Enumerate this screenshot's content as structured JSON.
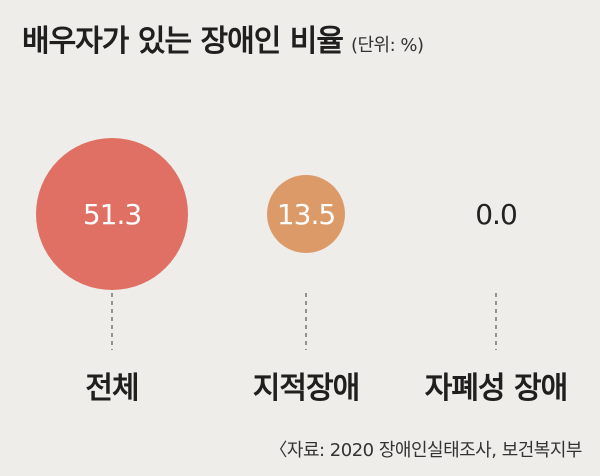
{
  "header": {
    "title": "배우자가 있는 장애인 비율",
    "unit": "(단위: %)"
  },
  "source": "〈자료: 2020 장애인실태조사, 보건복지부",
  "colors": {
    "background": "#efedea",
    "circle_total": "#e07064",
    "circle_intellectual": "#dc9a68",
    "dashed_line": "#555555"
  },
  "chart_data": {
    "type": "bubble",
    "categories": [
      "전체",
      "지적장애",
      "자폐성 장애"
    ],
    "values": [
      51.3,
      13.5,
      0.0
    ],
    "value_labels": [
      "51.3",
      "13.5",
      "0.0"
    ],
    "title": "배우자가 있는 장애인 비율",
    "unit": "(단위: %)"
  }
}
